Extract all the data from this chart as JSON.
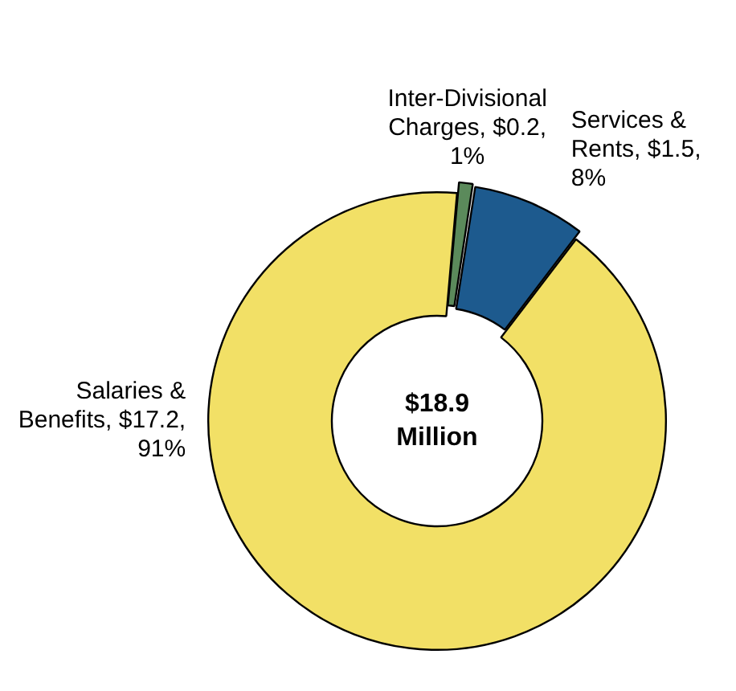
{
  "chart_data": {
    "type": "donut",
    "categories": [
      "Inter-Divisional Charges",
      "Services & Rents",
      "Salaries & Benefits"
    ],
    "values": [
      0.2,
      1.5,
      17.2
    ],
    "colors": [
      "#5b8a5b",
      "#1d5a8e",
      "#f2e066"
    ],
    "value_labels": [
      "$0.2, 1%",
      "$1.5, 8%",
      "$17.2, 91%"
    ],
    "annotations": [
      "$18.9 Million"
    ],
    "legend": false
  }
}
